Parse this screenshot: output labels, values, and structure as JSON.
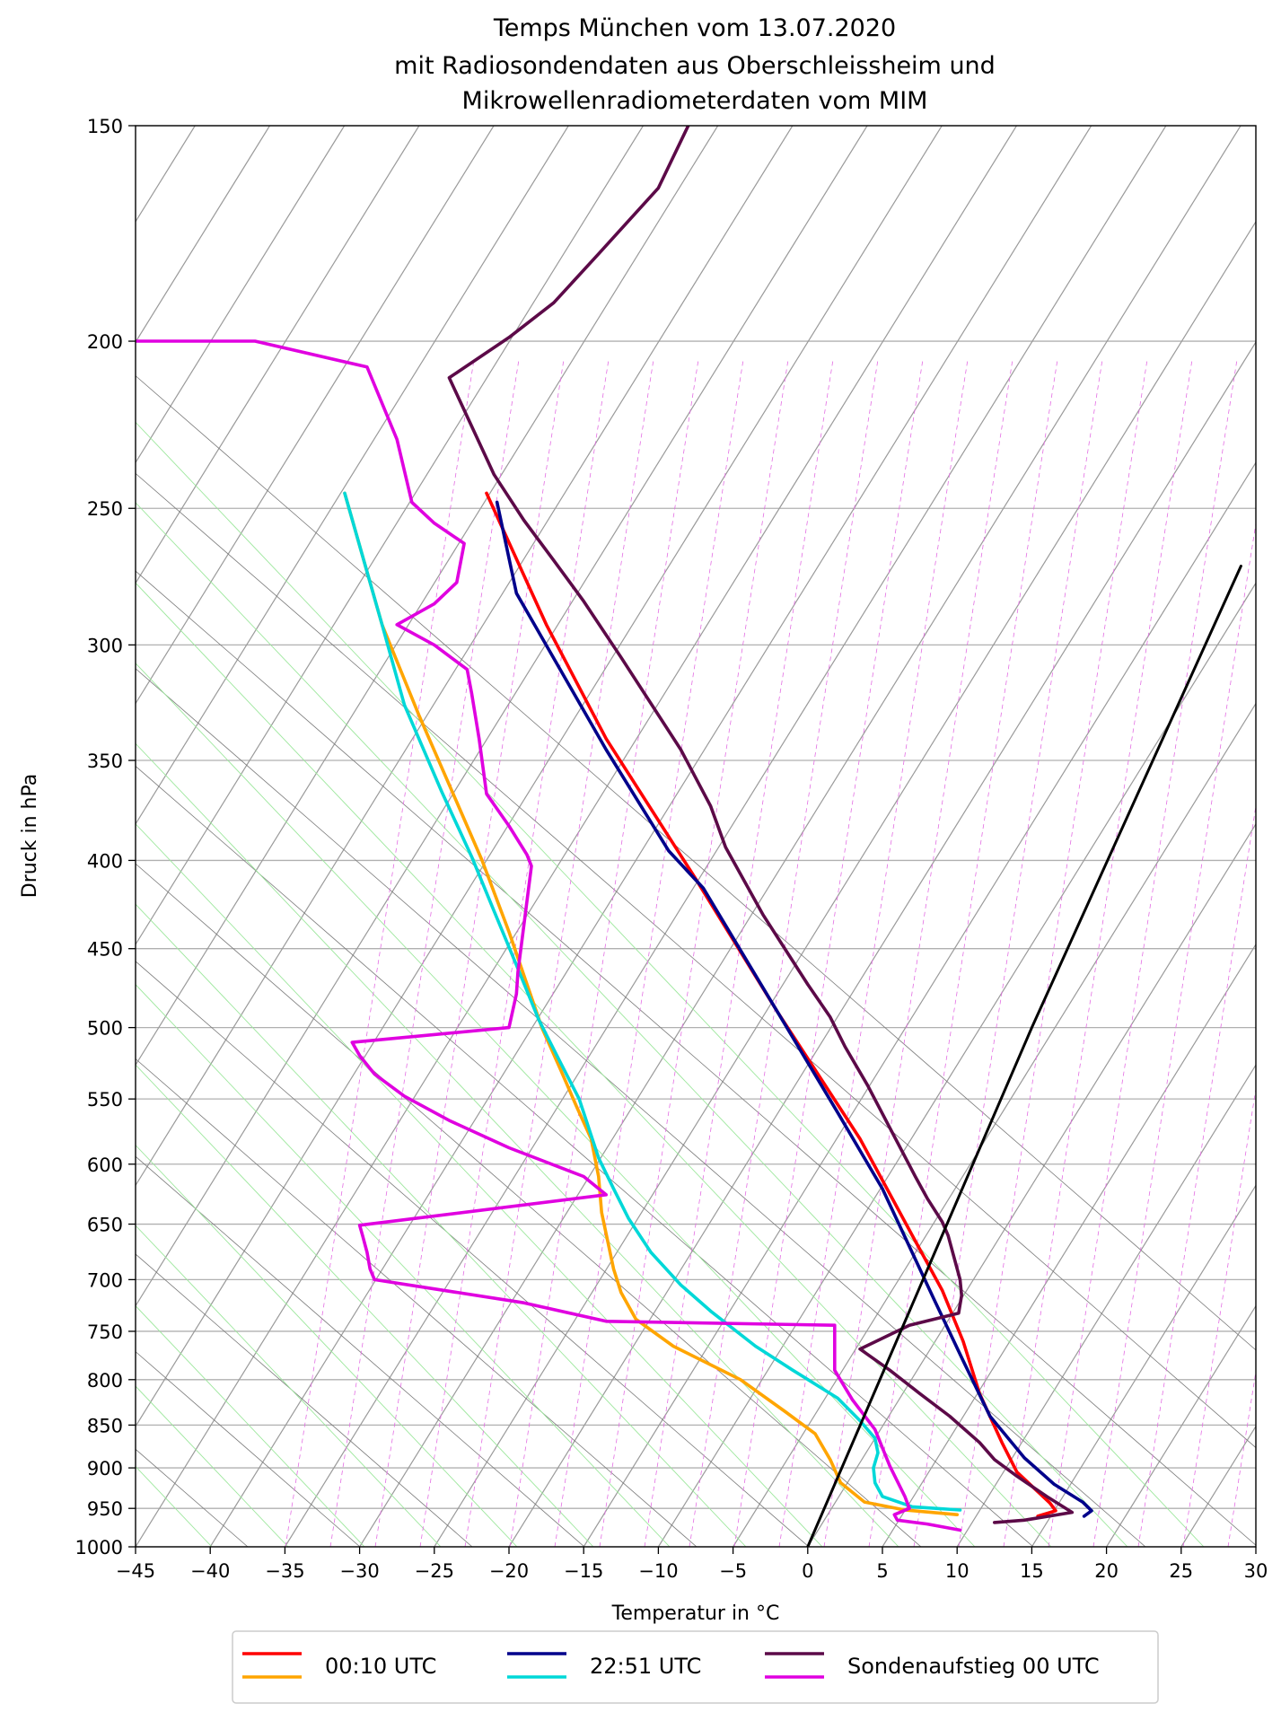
{
  "chart_data": {
    "type": "line",
    "subtype": "skew-T log-p",
    "title": [
      "Temps München vom 13.07.2020",
      "mit Radiosondendaten aus Oberschleissheim und",
      "Mikrowellenradiometerdaten vom MIM"
    ],
    "xlabel": "Temperatur in  °C",
    "ylabel": "Druck in hPa",
    "xlim": [
      -45,
      30
    ],
    "ylim": [
      1000,
      150
    ],
    "yscale": "log",
    "x_ticks": [
      -45,
      -40,
      -35,
      -30,
      -25,
      -20,
      -15,
      -10,
      -5,
      0,
      5,
      10,
      15,
      20,
      25,
      30
    ],
    "y_ticks": [
      150,
      200,
      250,
      300,
      350,
      400,
      450,
      500,
      550,
      600,
      650,
      700,
      750,
      800,
      850,
      900,
      950,
      1000
    ],
    "grid": true,
    "legend_position": "bottom-center",
    "legend": [
      {
        "label": "00:10 UTC",
        "colors": [
          "#ff0000",
          "#ffa500"
        ]
      },
      {
        "label": "22:51 UTC",
        "colors": [
          "#00008b",
          "#00d8d8"
        ]
      },
      {
        "label": "Sondenaufstieg 00 UTC",
        "colors": [
          "#5c0a48",
          "#e000e0"
        ]
      }
    ],
    "series": [
      {
        "role": "temperature",
        "color": "#ff0000",
        "points": [
          [
            15.4,
            960
          ],
          [
            16.6,
            953
          ],
          [
            16.2,
            943
          ],
          [
            14.0,
            905
          ],
          [
            13.0,
            870
          ],
          [
            11.5,
            815
          ],
          [
            10.4,
            760
          ],
          [
            9.0,
            710
          ],
          [
            7.0,
            660
          ],
          [
            3.5,
            580
          ],
          [
            -2.0,
            490
          ],
          [
            -7.5,
            410
          ],
          [
            -13.5,
            340
          ],
          [
            -17.5,
            292
          ],
          [
            -21.5,
            245
          ]
        ]
      },
      {
        "role": "dewpoint",
        "color": "#ffa500",
        "points": [
          [
            10.0,
            958
          ],
          [
            6.5,
            952
          ],
          [
            3.8,
            942
          ],
          [
            2.2,
            918
          ],
          [
            1.5,
            890
          ],
          [
            0.5,
            860
          ],
          [
            -1.5,
            835
          ],
          [
            -4.5,
            800
          ],
          [
            -9.0,
            765
          ],
          [
            -11.5,
            738
          ],
          [
            -12.5,
            712
          ],
          [
            -13.0,
            690
          ],
          [
            -13.8,
            640
          ],
          [
            -14.0,
            610
          ],
          [
            -14.5,
            580
          ],
          [
            -15.5,
            555
          ],
          [
            -16.5,
            530
          ],
          [
            -17.8,
            500
          ],
          [
            -20.0,
            440
          ],
          [
            -21.8,
            400
          ],
          [
            -23.5,
            370
          ],
          [
            -26.0,
            330
          ],
          [
            -28.5,
            292
          ],
          [
            -31.0,
            245
          ]
        ]
      },
      {
        "role": "temperature",
        "color": "#00008b",
        "points": [
          [
            18.5,
            960
          ],
          [
            19.0,
            953
          ],
          [
            18.4,
            942
          ],
          [
            16.5,
            920
          ],
          [
            14.5,
            888
          ],
          [
            12.2,
            840
          ],
          [
            10.4,
            780
          ],
          [
            8.5,
            720
          ],
          [
            5.0,
            620
          ],
          [
            2.0,
            560
          ],
          [
            -2.0,
            490
          ],
          [
            -7.0,
            415
          ],
          [
            -9.3,
            395
          ],
          [
            -13.5,
            345
          ],
          [
            -18.0,
            295
          ],
          [
            -19.5,
            280
          ],
          [
            -20.8,
            248
          ]
        ]
      },
      {
        "role": "dewpoint",
        "color": "#00d8d8",
        "points": [
          [
            10.2,
            952
          ],
          [
            7.0,
            948
          ],
          [
            5.0,
            935
          ],
          [
            4.5,
            918
          ],
          [
            4.4,
            900
          ],
          [
            4.7,
            882
          ],
          [
            4.5,
            865
          ],
          [
            3.5,
            845
          ],
          [
            2.0,
            820
          ],
          [
            -1.0,
            790
          ],
          [
            -3.5,
            765
          ],
          [
            -6.5,
            730
          ],
          [
            -8.5,
            705
          ],
          [
            -10.5,
            675
          ],
          [
            -12.0,
            645
          ],
          [
            -13.0,
            620
          ],
          [
            -14.0,
            595
          ],
          [
            -15.3,
            550
          ],
          [
            -16.5,
            525
          ],
          [
            -18.0,
            495
          ],
          [
            -19.5,
            460
          ],
          [
            -21.0,
            428
          ],
          [
            -22.5,
            398
          ],
          [
            -24.5,
            365
          ],
          [
            -27.0,
            325
          ],
          [
            -28.5,
            292
          ],
          [
            -31.0,
            245
          ]
        ]
      },
      {
        "role": "temperature",
        "color": "#5c0a48",
        "points": [
          [
            12.5,
            968
          ],
          [
            14.5,
            965
          ],
          [
            17.7,
            955
          ],
          [
            16.0,
            935
          ],
          [
            14.0,
            910
          ],
          [
            12.5,
            890
          ],
          [
            11.5,
            870
          ],
          [
            9.5,
            840
          ],
          [
            7.5,
            815
          ],
          [
            5.5,
            790
          ],
          [
            3.5,
            768
          ],
          [
            6.8,
            744
          ],
          [
            10.1,
            732
          ],
          [
            10.3,
            715
          ],
          [
            10.2,
            700
          ],
          [
            9.4,
            660
          ],
          [
            9.0,
            648
          ],
          [
            8.0,
            628
          ],
          [
            7.2,
            610
          ],
          [
            4.0,
            540
          ],
          [
            2.5,
            513
          ],
          [
            1.5,
            493
          ],
          [
            0.0,
            472
          ],
          [
            -3.0,
            430
          ],
          [
            -5.5,
            393
          ],
          [
            -6.5,
            372
          ],
          [
            -8.5,
            345
          ],
          [
            -12.5,
            305
          ],
          [
            -15.0,
            283
          ],
          [
            -17.0,
            268
          ],
          [
            -19.0,
            254
          ],
          [
            -21.0,
            239
          ],
          [
            -24.0,
            210
          ],
          [
            -20.0,
            199
          ],
          [
            -17.0,
            190
          ],
          [
            -14.0,
            178
          ],
          [
            -10.0,
            163
          ],
          [
            -8.0,
            150
          ]
        ]
      },
      {
        "role": "dewpoint",
        "color": "#e000e0",
        "points": [
          [
            10.2,
            978
          ],
          [
            8.0,
            970
          ],
          [
            6.0,
            965
          ],
          [
            5.8,
            958
          ],
          [
            6.8,
            950
          ],
          [
            6.5,
            935
          ],
          [
            5.5,
            898
          ],
          [
            4.5,
            855
          ],
          [
            3.0,
            822
          ],
          [
            1.8,
            790
          ],
          [
            1.8,
            744
          ],
          [
            -13.5,
            740
          ],
          [
            -19.0,
            722
          ],
          [
            -29.0,
            700
          ],
          [
            -29.3,
            690
          ],
          [
            -29.5,
            675
          ],
          [
            -29.8,
            660
          ],
          [
            -30.0,
            651
          ],
          [
            -13.5,
            625
          ],
          [
            -15.0,
            610
          ],
          [
            -20.0,
            587
          ],
          [
            -24.0,
            566
          ],
          [
            -27.0,
            548
          ],
          [
            -29.0,
            532
          ],
          [
            -30.0,
            519
          ],
          [
            -30.5,
            510
          ],
          [
            -20.0,
            500
          ],
          [
            -19.5,
            478
          ],
          [
            -19.4,
            464
          ],
          [
            -18.5,
            403
          ],
          [
            -18.8,
            397
          ],
          [
            -20.0,
            382
          ],
          [
            -21.5,
            366
          ],
          [
            -22.0,
            340
          ],
          [
            -22.5,
            320
          ],
          [
            -22.8,
            310
          ],
          [
            -25.0,
            300
          ],
          [
            -27.5,
            292
          ],
          [
            -25.0,
            284
          ],
          [
            -23.5,
            276
          ],
          [
            -23.0,
            262
          ],
          [
            -25.0,
            255
          ],
          [
            -26.5,
            248
          ],
          [
            -27.5,
            228
          ],
          [
            -29.5,
            207
          ],
          [
            -37.0,
            200
          ],
          [
            -45.0,
            200
          ]
        ]
      },
      {
        "role": "reference-line",
        "color": "#000000",
        "points": [
          [
            0.0,
            1000
          ],
          [
            15.0,
            500
          ],
          [
            29.0,
            270
          ]
        ]
      }
    ]
  }
}
